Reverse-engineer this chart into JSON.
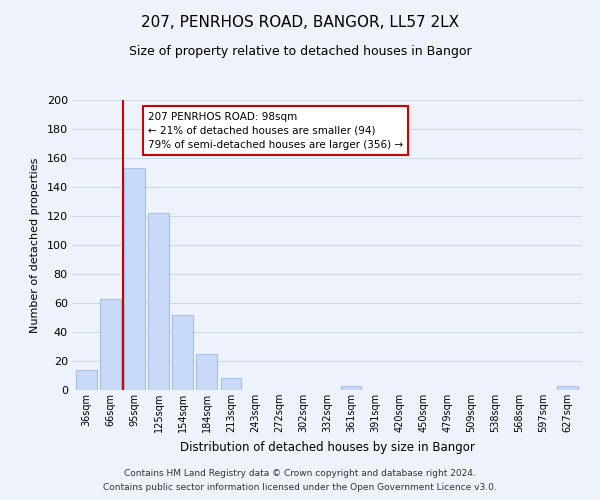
{
  "title": "207, PENRHOS ROAD, BANGOR, LL57 2LX",
  "subtitle": "Size of property relative to detached houses in Bangor",
  "xlabel": "Distribution of detached houses by size in Bangor",
  "ylabel": "Number of detached properties",
  "bar_labels": [
    "36sqm",
    "66sqm",
    "95sqm",
    "125sqm",
    "154sqm",
    "184sqm",
    "213sqm",
    "243sqm",
    "272sqm",
    "302sqm",
    "332sqm",
    "361sqm",
    "391sqm",
    "420sqm",
    "450sqm",
    "479sqm",
    "509sqm",
    "538sqm",
    "568sqm",
    "597sqm",
    "627sqm"
  ],
  "bar_values": [
    14,
    63,
    153,
    122,
    52,
    25,
    8,
    0,
    0,
    0,
    0,
    3,
    0,
    0,
    0,
    0,
    0,
    0,
    0,
    0,
    3
  ],
  "bar_fill_color": "#c9daf8",
  "bar_edge_color": "#a8c0e8",
  "grid_color": "#c5d8f0",
  "vline_color": "#cc0000",
  "vline_index": 2,
  "annotation_text": "207 PENRHOS ROAD: 98sqm\n← 21% of detached houses are smaller (94)\n79% of semi-detached houses are larger (356) →",
  "annotation_box_facecolor": "#ffffff",
  "annotation_box_edgecolor": "#cc0000",
  "ylim": [
    0,
    200
  ],
  "yticks": [
    0,
    20,
    40,
    60,
    80,
    100,
    120,
    140,
    160,
    180,
    200
  ],
  "footer_line1": "Contains HM Land Registry data © Crown copyright and database right 2024.",
  "footer_line2": "Contains public sector information licensed under the Open Government Licence v3.0.",
  "bg_color": "#eef2fa"
}
